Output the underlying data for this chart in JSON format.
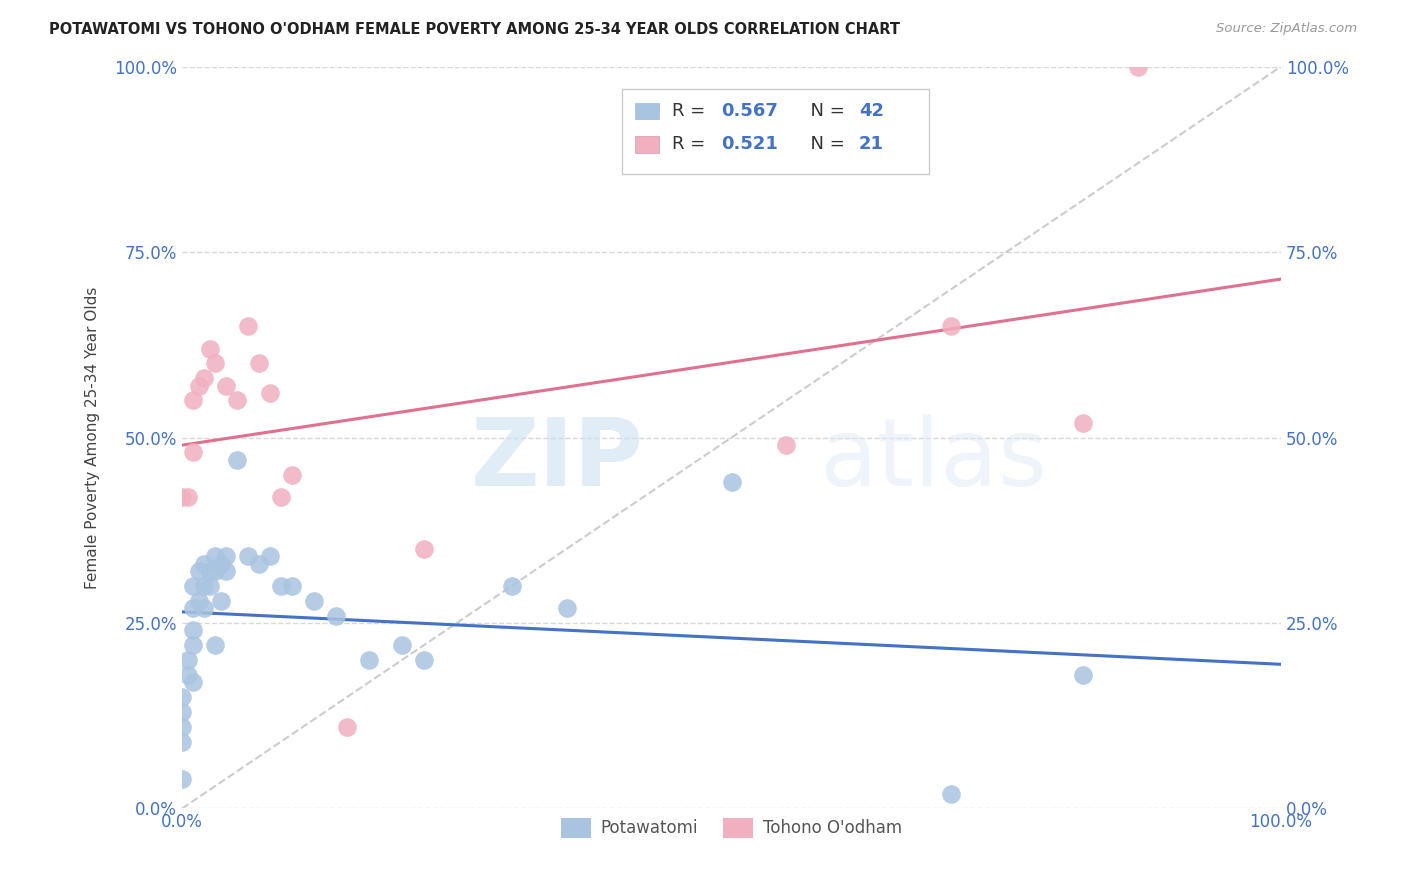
{
  "title": "POTAWATOMI VS TOHONO O'ODHAM FEMALE POVERTY AMONG 25-34 YEAR OLDS CORRELATION CHART",
  "source": "Source: ZipAtlas.com",
  "ylabel": "Female Poverty Among 25-34 Year Olds",
  "xlim": [
    0,
    1.0
  ],
  "ylim": [
    0,
    1.0
  ],
  "ytick_positions": [
    0.0,
    0.25,
    0.5,
    0.75,
    1.0
  ],
  "ytick_labels": [
    "0.0%",
    "25.0%",
    "50.0%",
    "75.0%",
    "100.0%"
  ],
  "xtick_positions": [
    0.0,
    1.0
  ],
  "xtick_labels": [
    "0.0%",
    "100.0%"
  ],
  "blue_color": "#a8c4e0",
  "pink_color": "#f0b0c0",
  "blue_line_color": "#4472c4",
  "pink_line_color": "#e07090",
  "axis_label_color": "#4472c4",
  "R_blue": 0.567,
  "N_blue": 42,
  "R_pink": 0.521,
  "N_pink": 21,
  "watermark_zip": "ZIP",
  "watermark_atlas": "atlas",
  "blue_x": [
    0.0,
    0.0,
    0.0,
    0.0,
    0.0,
    0.005,
    0.005,
    0.01,
    0.01,
    0.01,
    0.01,
    0.01,
    0.015,
    0.015,
    0.02,
    0.02,
    0.02,
    0.025,
    0.025,
    0.03,
    0.03,
    0.03,
    0.035,
    0.035,
    0.04,
    0.04,
    0.05,
    0.06,
    0.07,
    0.08,
    0.09,
    0.1,
    0.12,
    0.14,
    0.17,
    0.2,
    0.22,
    0.3,
    0.35,
    0.5,
    0.7,
    0.82
  ],
  "blue_y": [
    0.15,
    0.13,
    0.11,
    0.09,
    0.04,
    0.2,
    0.18,
    0.3,
    0.27,
    0.24,
    0.22,
    0.17,
    0.32,
    0.28,
    0.33,
    0.3,
    0.27,
    0.32,
    0.3,
    0.34,
    0.32,
    0.22,
    0.33,
    0.28,
    0.34,
    0.32,
    0.47,
    0.34,
    0.33,
    0.34,
    0.3,
    0.3,
    0.28,
    0.26,
    0.2,
    0.22,
    0.2,
    0.3,
    0.27,
    0.44,
    0.02,
    0.18
  ],
  "pink_x": [
    0.0,
    0.005,
    0.01,
    0.01,
    0.015,
    0.02,
    0.025,
    0.03,
    0.04,
    0.05,
    0.06,
    0.07,
    0.08,
    0.09,
    0.1,
    0.15,
    0.22,
    0.55,
    0.7,
    0.82,
    0.87
  ],
  "pink_y": [
    0.42,
    0.42,
    0.55,
    0.48,
    0.57,
    0.58,
    0.62,
    0.6,
    0.57,
    0.55,
    0.65,
    0.6,
    0.56,
    0.42,
    0.45,
    0.11,
    0.35,
    0.49,
    0.65,
    0.52,
    1.0
  ]
}
